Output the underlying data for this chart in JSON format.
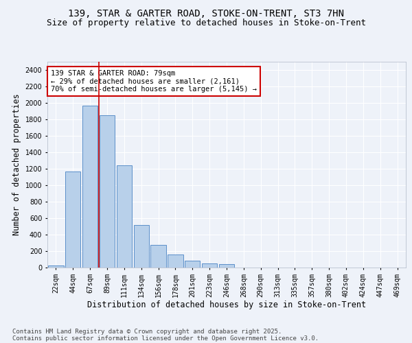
{
  "title1": "139, STAR & GARTER ROAD, STOKE-ON-TRENT, ST3 7HN",
  "title2": "Size of property relative to detached houses in Stoke-on-Trent",
  "xlabel": "Distribution of detached houses by size in Stoke-on-Trent",
  "ylabel": "Number of detached properties",
  "categories": [
    "22sqm",
    "44sqm",
    "67sqm",
    "89sqm",
    "111sqm",
    "134sqm",
    "156sqm",
    "178sqm",
    "201sqm",
    "223sqm",
    "246sqm",
    "268sqm",
    "290sqm",
    "313sqm",
    "335sqm",
    "357sqm",
    "380sqm",
    "402sqm",
    "424sqm",
    "447sqm",
    "469sqm"
  ],
  "values": [
    28,
    1170,
    1970,
    1850,
    1245,
    520,
    275,
    155,
    85,
    48,
    38,
    2,
    0,
    0,
    0,
    0,
    0,
    0,
    0,
    0,
    0
  ],
  "bar_color": "#b8d0ea",
  "bar_edge_color": "#5b8fc9",
  "vline_color": "#cc0000",
  "annotation_text": "139 STAR & GARTER ROAD: 79sqm\n← 29% of detached houses are smaller (2,161)\n70% of semi-detached houses are larger (5,145) →",
  "annotation_box_color": "white",
  "annotation_box_edge": "#cc0000",
  "ylim": [
    0,
    2500
  ],
  "yticks": [
    0,
    200,
    400,
    600,
    800,
    1000,
    1200,
    1400,
    1600,
    1800,
    2000,
    2200,
    2400
  ],
  "background_color": "#eef2f9",
  "grid_color": "#ffffff",
  "footer1": "Contains HM Land Registry data © Crown copyright and database right 2025.",
  "footer2": "Contains public sector information licensed under the Open Government Licence v3.0.",
  "title_fontsize": 10,
  "subtitle_fontsize": 9,
  "axis_label_fontsize": 8.5,
  "tick_fontsize": 7,
  "annotation_fontsize": 7.5,
  "footer_fontsize": 6.5
}
